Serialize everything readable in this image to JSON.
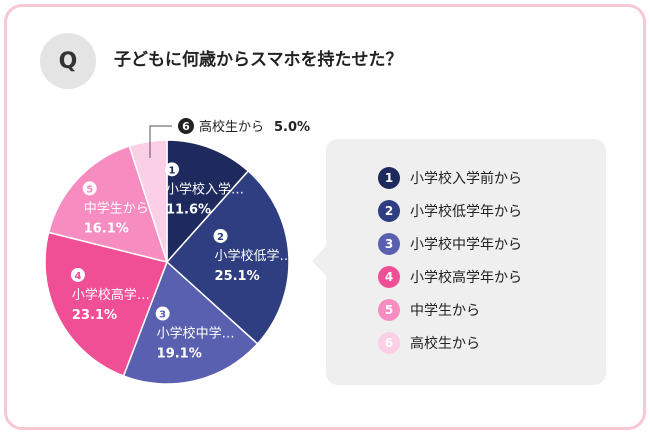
{
  "question": {
    "badge": "Q",
    "text": "子どもに何歳からスマホを持たせた？"
  },
  "chart_data": {
    "type": "pie",
    "title": "",
    "slices": [
      {
        "num": "1",
        "label": "小学校入学前から",
        "short": "小学校入学…",
        "value": 11.6,
        "value_label": "11.6%",
        "color": "#1e2a5e",
        "label_color": "#ffffff"
      },
      {
        "num": "2",
        "label": "小学校低学年から",
        "short": "小学校低学…",
        "value": 25.1,
        "value_label": "25.1%",
        "color": "#2f3e80",
        "label_color": "#ffffff"
      },
      {
        "num": "3",
        "label": "小学校中学年から",
        "short": "小学校中学…",
        "value": 19.1,
        "value_label": "19.1%",
        "color": "#5a60b0",
        "label_color": "#ffffff"
      },
      {
        "num": "4",
        "label": "小学校高学年から",
        "short": "小学校高学…",
        "value": 23.1,
        "value_label": "23.1%",
        "color": "#f04f96",
        "label_color": "#ffffff"
      },
      {
        "num": "5",
        "label": "中学生から",
        "short": "中学生から",
        "value": 16.1,
        "value_label": "16.1%",
        "color": "#f78cc0",
        "label_color": "#ffffff"
      },
      {
        "num": "6",
        "label": "高校生から",
        "short": "高校生から",
        "value": 5.0,
        "value_label": "5.0%",
        "color": "#fbcfe6",
        "label_color": "#222222"
      }
    ]
  }
}
